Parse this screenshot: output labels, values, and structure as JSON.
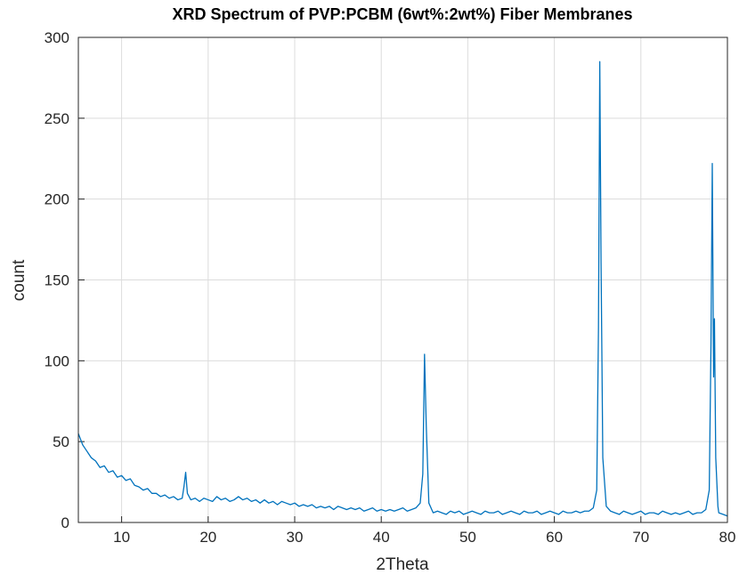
{
  "chart_data": {
    "type": "line",
    "title": "XRD Spectrum of PVP:PCBM (6wt%:2wt%) Fiber Membranes",
    "xlabel": "2Theta",
    "ylabel": "count",
    "color": "#0072BD",
    "grid": true,
    "xlim": [
      5,
      80
    ],
    "xticks": [
      10,
      20,
      30,
      40,
      50,
      60,
      70,
      80
    ],
    "ylim": [
      0,
      300
    ],
    "yticks": [
      0,
      50,
      100,
      150,
      200,
      250,
      300
    ],
    "x": [
      5,
      5.5,
      6,
      6.5,
      7,
      7.5,
      8,
      8.5,
      9,
      9.5,
      10,
      10.5,
      11,
      11.5,
      12,
      12.5,
      13,
      13.5,
      14,
      14.5,
      15,
      15.5,
      16,
      16.5,
      17,
      17.2,
      17.4,
      17.6,
      18,
      18.5,
      19,
      19.5,
      20,
      20.5,
      21,
      21.5,
      22,
      22.5,
      23,
      23.5,
      24,
      24.5,
      25,
      25.5,
      26,
      26.5,
      27,
      27.5,
      28,
      28.5,
      29,
      29.5,
      30,
      30.5,
      31,
      31.5,
      32,
      32.5,
      33,
      33.5,
      34,
      34.5,
      35,
      35.5,
      36,
      36.5,
      37,
      37.5,
      38,
      38.5,
      39,
      39.5,
      40,
      40.5,
      41,
      41.5,
      42,
      42.5,
      43,
      43.5,
      44,
      44.5,
      44.8,
      45,
      45.2,
      45.5,
      46,
      46.5,
      47,
      47.5,
      48,
      48.5,
      49,
      49.5,
      50,
      50.5,
      51,
      51.5,
      52,
      52.5,
      53,
      53.5,
      54,
      54.5,
      55,
      55.5,
      56,
      56.5,
      57,
      57.5,
      58,
      58.5,
      59,
      59.5,
      60,
      60.5,
      61,
      61.5,
      62,
      62.5,
      63,
      63.5,
      64,
      64.5,
      64.9,
      65.1,
      65.25,
      65.4,
      65.6,
      66,
      66.5,
      67,
      67.5,
      68,
      68.5,
      69,
      69.5,
      70,
      70.5,
      71,
      71.5,
      72,
      72.5,
      73,
      73.5,
      74,
      74.5,
      75,
      75.5,
      76,
      76.5,
      77,
      77.5,
      77.9,
      78.1,
      78.25,
      78.4,
      78.5,
      78.65,
      78.9,
      79,
      79.5,
      80
    ],
    "series": [
      {
        "color": "#0072BD",
        "values": [
          55,
          48,
          44,
          40,
          38,
          34,
          35,
          31,
          32,
          28,
          29,
          26,
          27,
          23,
          22,
          20,
          21,
          18,
          18,
          16,
          17,
          15,
          16,
          14,
          15,
          22,
          31,
          18,
          14,
          15,
          13,
          15,
          14,
          13,
          16,
          14,
          15,
          13,
          14,
          16,
          14,
          15,
          13,
          14,
          12,
          14,
          12,
          13,
          11,
          13,
          12,
          11,
          12,
          10,
          11,
          10,
          11,
          9,
          10,
          9,
          10,
          8,
          10,
          9,
          8,
          9,
          8,
          9,
          7,
          8,
          9,
          7,
          8,
          7,
          8,
          7,
          8,
          9,
          7,
          8,
          9,
          12,
          30,
          104,
          60,
          12,
          6,
          7,
          6,
          5,
          7,
          6,
          7,
          5,
          6,
          7,
          6,
          5,
          7,
          6,
          6,
          7,
          5,
          6,
          7,
          6,
          5,
          7,
          6,
          6,
          7,
          5,
          6,
          7,
          6,
          5,
          7,
          6,
          6,
          7,
          6,
          7,
          7,
          9,
          20,
          120,
          285,
          160,
          40,
          10,
          7,
          6,
          5,
          7,
          6,
          5,
          6,
          7,
          5,
          6,
          6,
          5,
          7,
          6,
          5,
          6,
          5,
          6,
          7,
          5,
          6,
          6,
          8,
          20,
          110,
          222,
          90,
          126,
          40,
          10,
          6,
          5,
          4
        ]
      }
    ]
  }
}
